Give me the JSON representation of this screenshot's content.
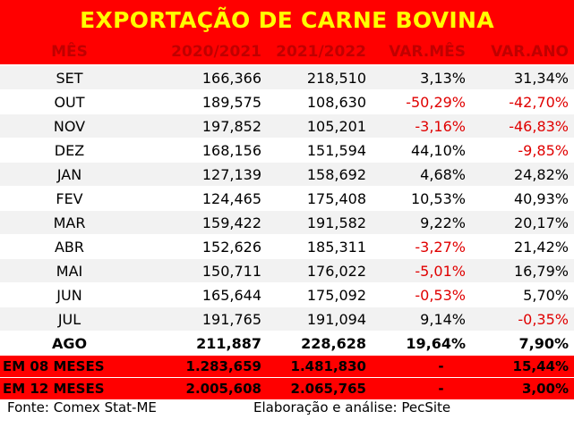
{
  "title": "EXPORTAÇÃO DE CARNE BOVINA",
  "headers": [
    "MÊS",
    "2020/2021",
    "2021/2022",
    "VAR.MÊS",
    "VAR.ANO"
  ],
  "rows": [
    {
      "month": "SET",
      "a": "166,366",
      "b": "218,510",
      "var_mes": "3,13%",
      "var_ano": "31,34%"
    },
    {
      "month": "OUT",
      "a": "189,575",
      "b": "108,630",
      "var_mes": "-50,29%",
      "var_ano": "-42,70%"
    },
    {
      "month": "NOV",
      "a": "197,852",
      "b": "105,201",
      "var_mes": "-3,16%",
      "var_ano": "-46,83%"
    },
    {
      "month": "DEZ",
      "a": "168,156",
      "b": "151,594",
      "var_mes": "44,10%",
      "var_ano": "-9,85%"
    },
    {
      "month": "JAN",
      "a": "127,139",
      "b": "158,692",
      "var_mes": "4,68%",
      "var_ano": "24,82%"
    },
    {
      "month": "FEV",
      "a": "124,465",
      "b": "175,408",
      "var_mes": "10,53%",
      "var_ano": "40,93%"
    },
    {
      "month": "MAR",
      "a": "159,422",
      "b": "191,582",
      "var_mes": "9,22%",
      "var_ano": "20,17%"
    },
    {
      "month": "ABR",
      "a": "152,626",
      "b": "185,311",
      "var_mes": "-3,27%",
      "var_ano": "21,42%"
    },
    {
      "month": "MAI",
      "a": "150,711",
      "b": "176,022",
      "var_mes": "-5,01%",
      "var_ano": "16,79%"
    },
    {
      "month": "JUN",
      "a": "165,644",
      "b": "175,092",
      "var_mes": "-0,53%",
      "var_ano": "5,70%"
    },
    {
      "month": "JUL",
      "a": "191,765",
      "b": "191,094",
      "var_mes": "9,14%",
      "var_ano": "-0,35%"
    },
    {
      "month": "AGO",
      "a": "211,887",
      "b": "228,628",
      "var_mes": "19,64%",
      "var_ano": "7,90%"
    }
  ],
  "summary": [
    {
      "label": "EM 08 MESES",
      "a": "1.283,659",
      "b": "1.481,830",
      "var_mes": "-",
      "var_ano": "15,44%"
    },
    {
      "label": "EM 12 MESES",
      "a": "2.005,608",
      "b": "2.065,765",
      "var_mes": "-",
      "var_ano": "3,00%"
    }
  ],
  "footer": {
    "source": "Fonte: Comex Stat-ME",
    "elaboration": "Elaboração e análise: PecSite"
  },
  "colors": {
    "header_bg": "#ff0000",
    "title_text": "#ffff00",
    "header_text": "#c00000",
    "negative": "#e00000",
    "stripe": "#f2f2f2"
  }
}
